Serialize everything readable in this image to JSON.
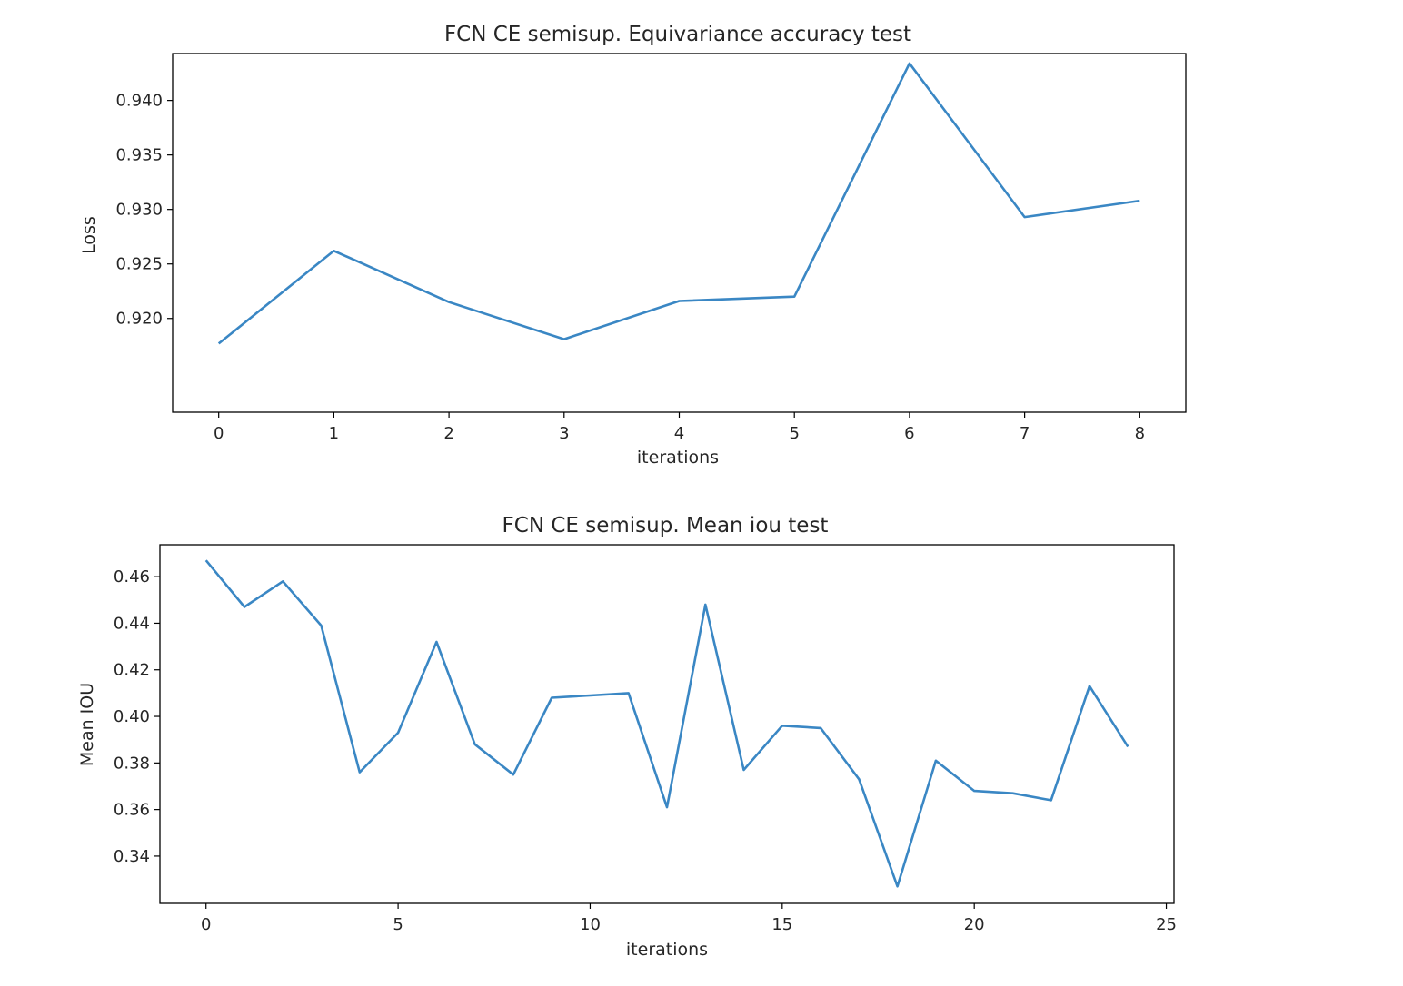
{
  "chart_data": [
    {
      "type": "line",
      "title": "FCN CE semisup. Equivariance accuracy test",
      "xlabel": "iterations",
      "ylabel": "Loss",
      "xlim": [
        -0.4,
        8.4
      ],
      "ylim": [
        0.9114,
        0.9443
      ],
      "xticks": [
        "0",
        "1",
        "2",
        "3",
        "4",
        "5",
        "6",
        "7",
        "8"
      ],
      "yticks": [
        "0.920",
        "0.925",
        "0.930",
        "0.935",
        "0.940"
      ],
      "grid": false,
      "line_color": "#3a87c4",
      "series": [
        {
          "x": [
            0,
            1,
            2,
            3,
            4,
            5,
            6,
            7,
            8
          ],
          "values": [
            0.9177,
            0.9262,
            0.9215,
            0.9181,
            0.9216,
            0.922,
            0.9434,
            0.9293,
            0.9308
          ]
        }
      ]
    },
    {
      "type": "line",
      "title": "FCN CE semisup. Mean iou test",
      "xlabel": "iterations",
      "ylabel": "Mean IOU",
      "xlim": [
        -1.2,
        25.2
      ],
      "ylim": [
        0.3197,
        0.4737
      ],
      "xticks": [
        "0",
        "5",
        "10",
        "15",
        "20",
        "25"
      ],
      "yticks": [
        "0.34",
        "0.36",
        "0.38",
        "0.40",
        "0.42",
        "0.44",
        "0.46"
      ],
      "grid": false,
      "line_color": "#3a87c4",
      "series": [
        {
          "x": [
            0,
            1,
            2,
            3,
            4,
            5,
            6,
            7,
            8,
            9,
            10,
            11,
            12,
            13,
            14,
            15,
            16,
            17,
            18,
            19,
            20,
            21,
            22,
            23,
            24
          ],
          "values": [
            0.467,
            0.447,
            0.458,
            0.439,
            0.376,
            0.393,
            0.432,
            0.388,
            0.375,
            0.408,
            0.409,
            0.41,
            0.361,
            0.448,
            0.377,
            0.396,
            0.395,
            0.373,
            0.327,
            0.381,
            0.368,
            0.367,
            0.364,
            0.413,
            0.387
          ]
        }
      ]
    }
  ]
}
